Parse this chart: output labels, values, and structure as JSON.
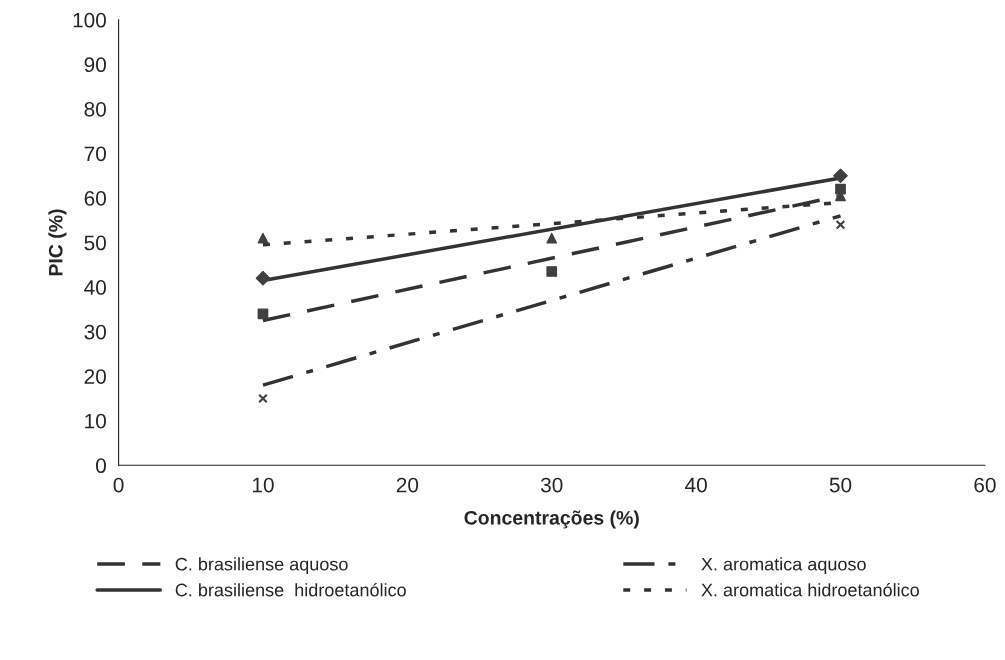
{
  "chart_data": {
    "type": "line",
    "xlabel": "Concentrações (%)",
    "ylabel": "PIC (%)",
    "xlim": [
      0,
      60
    ],
    "xticks": [
      0,
      10,
      20,
      30,
      40,
      50,
      60
    ],
    "ylim": [
      0,
      100
    ],
    "yticks": [
      0,
      10,
      20,
      30,
      40,
      50,
      60,
      70,
      80,
      90,
      100
    ],
    "grid": false,
    "legend": "bottom",
    "series": [
      {
        "name": "C. brasiliense aquoso",
        "x": [
          10,
          50
        ],
        "values": [
          32.5,
          60.5
        ],
        "color": "#333333",
        "line_style": "dashed",
        "marker": "none"
      },
      {
        "name": "C. brasiliense  hidroetanólico",
        "x": [
          10,
          50
        ],
        "values": [
          41.5,
          64.5
        ],
        "color": "#333333",
        "line_style": "solid",
        "marker": "none"
      },
      {
        "name": "X. aromatica aquoso",
        "x": [
          10,
          50
        ],
        "values": [
          18,
          56
        ],
        "color": "#333333",
        "line_style": "dashdot",
        "marker": "none"
      },
      {
        "name": "X. aromatica hidroetanólico",
        "x": [
          10,
          50
        ],
        "values": [
          49.5,
          59
        ],
        "color": "#333333",
        "line_style": "dotted",
        "marker": "none"
      },
      {
        "type": "scatter",
        "x": [
          10,
          30,
          50
        ],
        "values": [
          34,
          43.5,
          62
        ],
        "color": "#404040",
        "marker": "square"
      },
      {
        "type": "scatter",
        "x": [
          10,
          30,
          50
        ],
        "values": [
          42,
          null,
          65
        ],
        "color": "#404040",
        "marker": "diamond"
      },
      {
        "type": "scatter",
        "x": [
          10,
          30,
          50
        ],
        "values": [
          15,
          null,
          54
        ],
        "color": "#404040",
        "marker": "cross"
      },
      {
        "type": "scatter",
        "x": [
          10,
          30,
          50
        ],
        "values": [
          51,
          51,
          60.5
        ],
        "color": "#404040",
        "marker": "triangle"
      }
    ]
  }
}
